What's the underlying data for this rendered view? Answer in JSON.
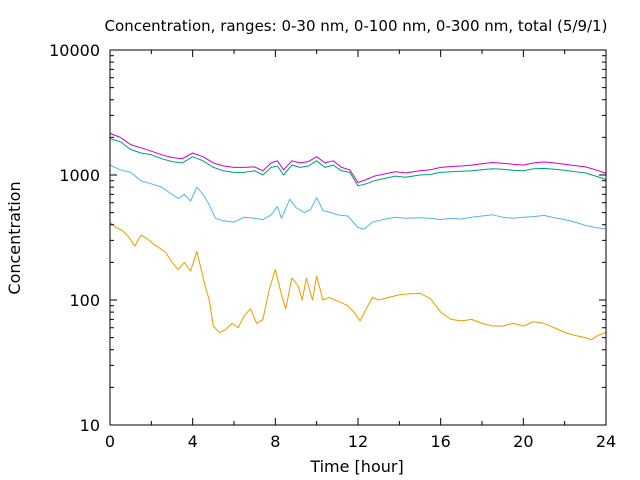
{
  "chart_data": {
    "type": "line",
    "title": "Concentration, ranges: 0-30 nm, 0-100 nm, 0-300 nm, total (5/9/1)",
    "xlabel": "Time [hour]",
    "ylabel": "Concentration",
    "xlim": [
      0,
      24
    ],
    "ylim": [
      10,
      10000
    ],
    "yscale": "log",
    "grid": false,
    "xticks": [
      0,
      4,
      8,
      12,
      16,
      20,
      24
    ],
    "xtick_labels": [
      "0",
      "4",
      "8",
      "12",
      "16",
      "20",
      "24"
    ],
    "yticks": [
      10,
      100,
      1000,
      10000
    ],
    "ytick_labels": [
      "10",
      "100",
      "1000",
      "10000"
    ],
    "series": [
      {
        "color": "#e69f00",
        "points": [
          [
            0,
            420
          ],
          [
            0.3,
            380
          ],
          [
            0.6,
            360
          ],
          [
            0.9,
            320
          ],
          [
            1.2,
            270
          ],
          [
            1.5,
            330
          ],
          [
            1.8,
            310
          ],
          [
            2.1,
            280
          ],
          [
            2.4,
            260
          ],
          [
            2.7,
            240
          ],
          [
            3.0,
            200
          ],
          [
            3.3,
            175
          ],
          [
            3.6,
            200
          ],
          [
            3.9,
            170
          ],
          [
            4.2,
            245
          ],
          [
            4.4,
            180
          ],
          [
            4.6,
            130
          ],
          [
            4.8,
            100
          ],
          [
            5.0,
            62
          ],
          [
            5.3,
            55
          ],
          [
            5.6,
            58
          ],
          [
            5.9,
            65
          ],
          [
            6.2,
            60
          ],
          [
            6.5,
            75
          ],
          [
            6.8,
            85
          ],
          [
            7.1,
            65
          ],
          [
            7.4,
            70
          ],
          [
            7.7,
            120
          ],
          [
            8.0,
            175
          ],
          [
            8.3,
            110
          ],
          [
            8.5,
            85
          ],
          [
            8.8,
            150
          ],
          [
            9.1,
            130
          ],
          [
            9.3,
            100
          ],
          [
            9.5,
            150
          ],
          [
            9.8,
            100
          ],
          [
            10.0,
            155
          ],
          [
            10.3,
            100
          ],
          [
            10.6,
            105
          ],
          [
            10.9,
            100
          ],
          [
            11.2,
            95
          ],
          [
            11.5,
            90
          ],
          [
            11.8,
            80
          ],
          [
            12.1,
            68
          ],
          [
            12.4,
            85
          ],
          [
            12.7,
            105
          ],
          [
            13.0,
            100
          ],
          [
            13.5,
            105
          ],
          [
            14.0,
            110
          ],
          [
            14.5,
            112
          ],
          [
            15.0,
            113
          ],
          [
            15.5,
            103
          ],
          [
            16.0,
            80
          ],
          [
            16.5,
            70
          ],
          [
            17.0,
            68
          ],
          [
            17.5,
            70
          ],
          [
            18.0,
            65
          ],
          [
            18.5,
            62
          ],
          [
            19.0,
            62
          ],
          [
            19.5,
            65
          ],
          [
            20.0,
            62
          ],
          [
            20.5,
            67
          ],
          [
            21.0,
            65
          ],
          [
            21.5,
            60
          ],
          [
            22.0,
            55
          ],
          [
            22.5,
            52
          ],
          [
            23.0,
            50
          ],
          [
            23.3,
            48
          ],
          [
            23.6,
            52
          ],
          [
            24.0,
            55
          ]
        ]
      },
      {
        "color": "#56b4e9",
        "points": [
          [
            0,
            1200
          ],
          [
            0.5,
            1100
          ],
          [
            1.0,
            1050
          ],
          [
            1.5,
            900
          ],
          [
            2.0,
            850
          ],
          [
            2.5,
            800
          ],
          [
            3.0,
            700
          ],
          [
            3.3,
            650
          ],
          [
            3.6,
            700
          ],
          [
            3.9,
            620
          ],
          [
            4.2,
            800
          ],
          [
            4.5,
            700
          ],
          [
            4.8,
            580
          ],
          [
            5.1,
            450
          ],
          [
            5.5,
            430
          ],
          [
            6.0,
            420
          ],
          [
            6.5,
            460
          ],
          [
            7.0,
            450
          ],
          [
            7.4,
            440
          ],
          [
            7.8,
            480
          ],
          [
            8.1,
            560
          ],
          [
            8.3,
            450
          ],
          [
            8.7,
            640
          ],
          [
            9.0,
            550
          ],
          [
            9.4,
            500
          ],
          [
            9.7,
            530
          ],
          [
            10.0,
            660
          ],
          [
            10.3,
            520
          ],
          [
            10.7,
            500
          ],
          [
            11.0,
            480
          ],
          [
            11.5,
            470
          ],
          [
            12.0,
            380
          ],
          [
            12.3,
            370
          ],
          [
            12.7,
            420
          ],
          [
            13.2,
            440
          ],
          [
            13.8,
            460
          ],
          [
            14.3,
            450
          ],
          [
            15.0,
            455
          ],
          [
            15.5,
            450
          ],
          [
            16.0,
            440
          ],
          [
            16.5,
            450
          ],
          [
            17.0,
            445
          ],
          [
            17.5,
            460
          ],
          [
            18.0,
            470
          ],
          [
            18.5,
            480
          ],
          [
            19.0,
            460
          ],
          [
            19.5,
            450
          ],
          [
            20.0,
            460
          ],
          [
            20.5,
            465
          ],
          [
            21.0,
            475
          ],
          [
            21.5,
            455
          ],
          [
            22.0,
            440
          ],
          [
            22.5,
            420
          ],
          [
            23.0,
            395
          ],
          [
            23.5,
            380
          ],
          [
            24.0,
            370
          ]
        ]
      },
      {
        "color": "#009e73",
        "points": [
          [
            0,
            1950
          ],
          [
            0.5,
            1850
          ],
          [
            1.0,
            1600
          ],
          [
            1.5,
            1500
          ],
          [
            2.0,
            1450
          ],
          [
            2.5,
            1350
          ],
          [
            3.0,
            1280
          ],
          [
            3.5,
            1250
          ],
          [
            4.0,
            1400
          ],
          [
            4.5,
            1300
          ],
          [
            5.0,
            1150
          ],
          [
            5.5,
            1080
          ],
          [
            6.0,
            1050
          ],
          [
            6.5,
            1050
          ],
          [
            7.0,
            1080
          ],
          [
            7.4,
            1000
          ],
          [
            7.8,
            1150
          ],
          [
            8.1,
            1180
          ],
          [
            8.4,
            1000
          ],
          [
            8.8,
            1200
          ],
          [
            9.2,
            1150
          ],
          [
            9.6,
            1180
          ],
          [
            10.0,
            1300
          ],
          [
            10.4,
            1150
          ],
          [
            10.8,
            1200
          ],
          [
            11.2,
            1080
          ],
          [
            11.6,
            1050
          ],
          [
            12.0,
            820
          ],
          [
            12.4,
            850
          ],
          [
            12.8,
            900
          ],
          [
            13.3,
            940
          ],
          [
            13.8,
            980
          ],
          [
            14.3,
            960
          ],
          [
            15.0,
            1000
          ],
          [
            15.5,
            1010
          ],
          [
            16.0,
            1050
          ],
          [
            16.5,
            1060
          ],
          [
            17.0,
            1070
          ],
          [
            17.5,
            1080
          ],
          [
            18.0,
            1100
          ],
          [
            18.5,
            1120
          ],
          [
            19.0,
            1110
          ],
          [
            19.5,
            1090
          ],
          [
            20.0,
            1080
          ],
          [
            20.5,
            1120
          ],
          [
            21.0,
            1130
          ],
          [
            21.5,
            1110
          ],
          [
            22.0,
            1090
          ],
          [
            22.5,
            1060
          ],
          [
            23.0,
            1040
          ],
          [
            23.5,
            980
          ],
          [
            24.0,
            920
          ]
        ]
      },
      {
        "color": "#cc00cc",
        "points": [
          [
            0,
            2150
          ],
          [
            0.5,
            2000
          ],
          [
            1.0,
            1750
          ],
          [
            1.5,
            1650
          ],
          [
            2.0,
            1550
          ],
          [
            2.5,
            1450
          ],
          [
            3.0,
            1380
          ],
          [
            3.5,
            1350
          ],
          [
            4.0,
            1500
          ],
          [
            4.5,
            1400
          ],
          [
            5.0,
            1250
          ],
          [
            5.5,
            1180
          ],
          [
            6.0,
            1150
          ],
          [
            6.5,
            1150
          ],
          [
            7.0,
            1160
          ],
          [
            7.4,
            1080
          ],
          [
            7.8,
            1250
          ],
          [
            8.1,
            1300
          ],
          [
            8.4,
            1100
          ],
          [
            8.8,
            1300
          ],
          [
            9.2,
            1250
          ],
          [
            9.6,
            1280
          ],
          [
            10.0,
            1400
          ],
          [
            10.4,
            1250
          ],
          [
            10.8,
            1300
          ],
          [
            11.2,
            1150
          ],
          [
            11.6,
            1100
          ],
          [
            12.0,
            870
          ],
          [
            12.4,
            920
          ],
          [
            12.8,
            980
          ],
          [
            13.3,
            1020
          ],
          [
            13.8,
            1060
          ],
          [
            14.3,
            1040
          ],
          [
            15.0,
            1080
          ],
          [
            15.5,
            1100
          ],
          [
            16.0,
            1150
          ],
          [
            16.5,
            1170
          ],
          [
            17.0,
            1180
          ],
          [
            17.5,
            1200
          ],
          [
            18.0,
            1230
          ],
          [
            18.5,
            1260
          ],
          [
            19.0,
            1240
          ],
          [
            19.5,
            1220
          ],
          [
            20.0,
            1200
          ],
          [
            20.5,
            1250
          ],
          [
            21.0,
            1270
          ],
          [
            21.5,
            1250
          ],
          [
            22.0,
            1220
          ],
          [
            22.5,
            1190
          ],
          [
            23.0,
            1160
          ],
          [
            23.5,
            1100
          ],
          [
            24.0,
            1030
          ]
        ]
      }
    ]
  }
}
